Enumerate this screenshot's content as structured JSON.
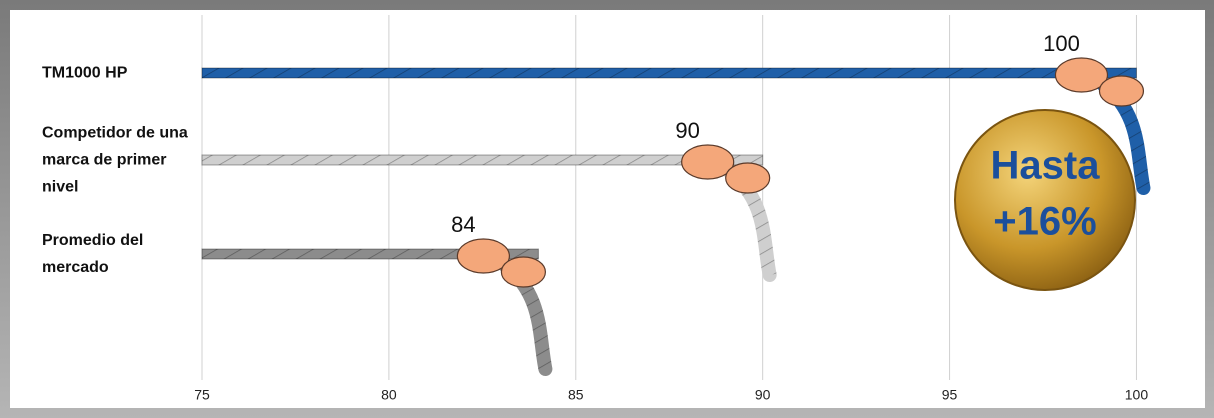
{
  "chart_data": {
    "type": "bar",
    "orientation": "horizontal",
    "categories": [
      "TM1000 HP",
      "Competidor de una marca de primer nivel",
      "Promedio del mercado"
    ],
    "values": [
      100,
      90,
      84
    ],
    "colors": [
      "#1f5fa8",
      "#cfcfcf",
      "#8c8c8c"
    ],
    "xlim": [
      75,
      101.7
    ],
    "xticks": [
      75,
      80,
      85,
      90,
      95,
      100
    ],
    "grid": true,
    "annotation": [
      "Hasta",
      "+16%"
    ]
  }
}
